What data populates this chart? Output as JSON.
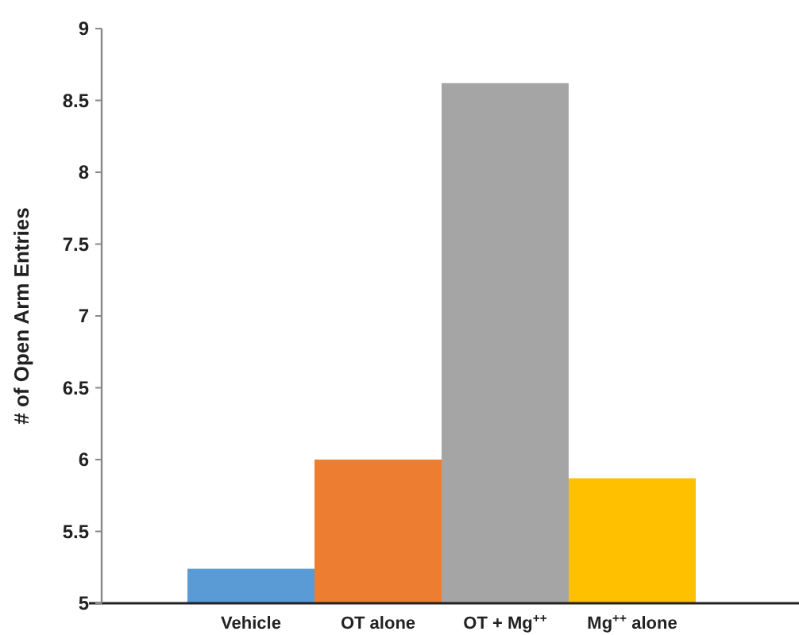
{
  "chart_data": {
    "type": "bar",
    "ylabel": "# of Open Arm Entries",
    "categories": [
      "Vehicle",
      "OT alone",
      "OT + Mg$^{++}$",
      "Mg$^{++}$ alone"
    ],
    "values": [
      5.24,
      6.0,
      8.62,
      5.87
    ],
    "colors": [
      "#5b9bd5",
      "#ed7d31",
      "#a5a5a5",
      "#ffc000"
    ],
    "ylim": [
      5,
      9
    ],
    "yticks": [
      5,
      5.5,
      6,
      6.5,
      7,
      7.5,
      8,
      8.5,
      9
    ],
    "grid": false
  }
}
